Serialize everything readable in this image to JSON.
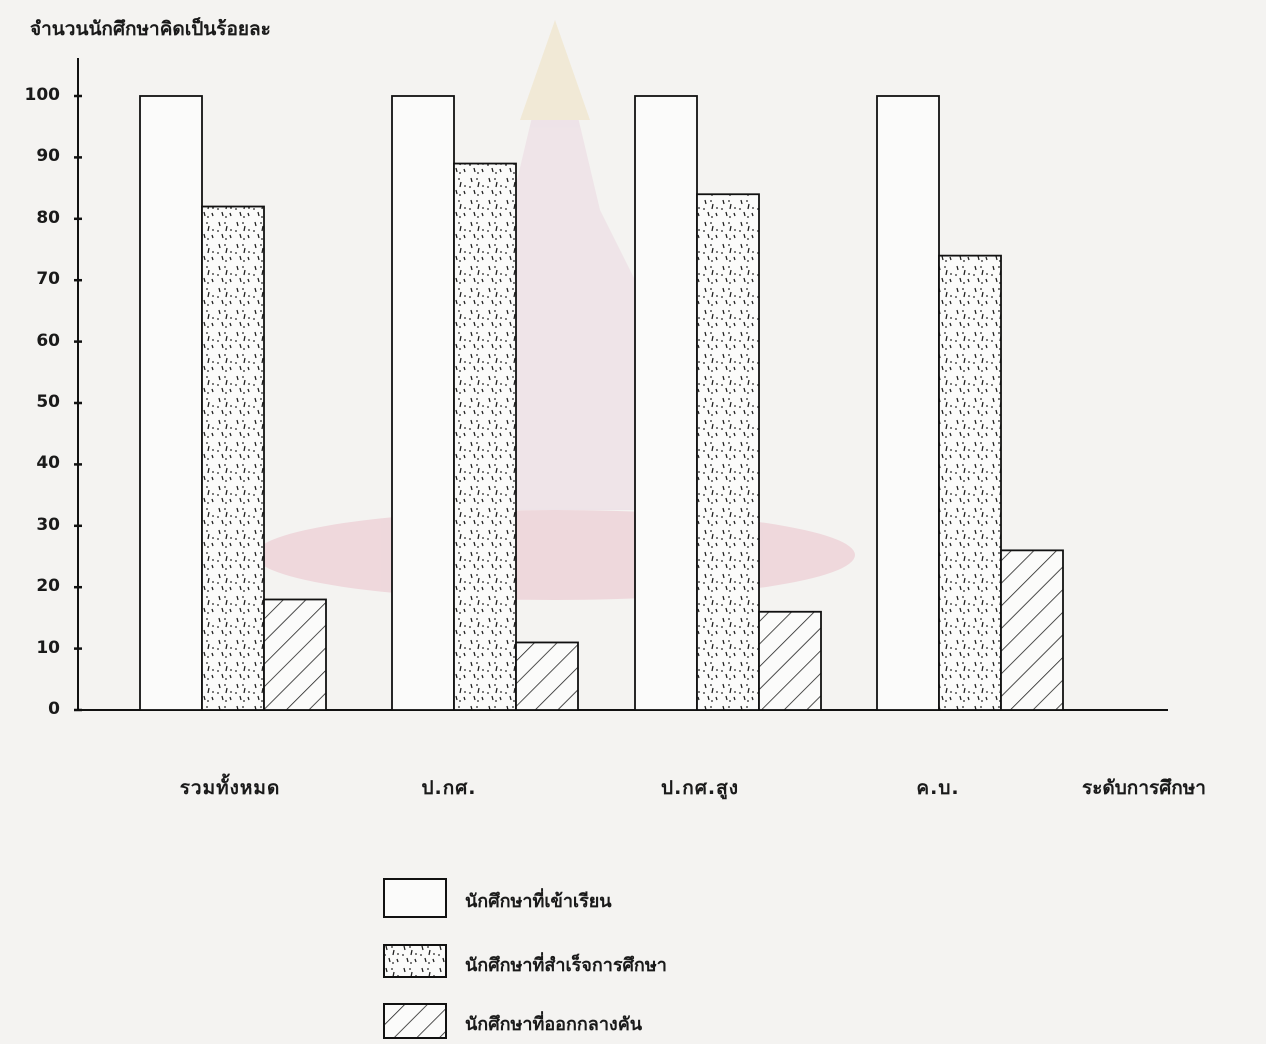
{
  "chart_data": {
    "type": "bar",
    "title": "",
    "ylabel": "จำนวนนักศึกษาคิดเป็นร้อยละ",
    "xlabel": "ระดับการศึกษา",
    "ylim": [
      0,
      100
    ],
    "yticks": [
      0,
      10,
      20,
      30,
      40,
      50,
      60,
      70,
      80,
      90,
      100
    ],
    "grid": false,
    "legend_position": "bottom-center",
    "categories": [
      "รวมทั้งหมด",
      "ป.กศ.",
      "ป.กศ.สูง",
      "ค.บ."
    ],
    "series": [
      {
        "name": "นักศึกษาที่เข้าเรียน",
        "values": [
          100,
          100,
          100,
          100
        ],
        "pattern": "blank"
      },
      {
        "name": "นักศึกษาที่สำเร็จการศึกษา",
        "values": [
          82,
          89,
          84,
          74
        ],
        "pattern": "dotted"
      },
      {
        "name": "นักศึกษาที่ออกกลางคัน",
        "values": [
          18,
          11,
          16,
          26
        ],
        "pattern": "hatched"
      }
    ]
  }
}
